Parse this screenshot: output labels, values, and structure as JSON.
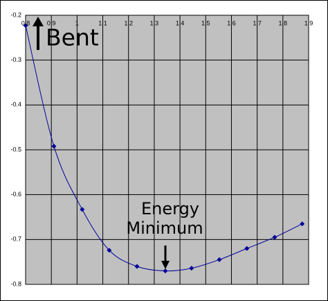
{
  "chart_data": {
    "type": "line",
    "annotations": [
      "Bent",
      "Energy",
      "Minimum"
    ],
    "x": [
      0.8,
      0.91,
      1.02,
      1.125,
      1.233,
      1.343,
      1.445,
      1.553,
      1.66,
      1.768,
      1.875
    ],
    "series": [
      {
        "color": "#000099",
        "values": [
          -0.223,
          -0.492,
          -0.633,
          -0.724,
          -0.76,
          -0.77,
          -0.764,
          -0.745,
          -0.72,
          -0.695,
          -0.665
        ]
      }
    ],
    "xlim": [
      0.8,
      1.9
    ],
    "xticks": [
      0.8,
      0.9,
      1,
      1.1,
      1.2,
      1.3,
      1.4,
      1.5,
      1.6,
      1.7,
      1.8,
      1.9
    ],
    "ylim": [
      -0.8,
      -0.2
    ],
    "yticks": [
      -0.8,
      -0.7,
      -0.6,
      -0.5,
      -0.4,
      -0.3,
      -0.2
    ],
    "grid": true
  }
}
